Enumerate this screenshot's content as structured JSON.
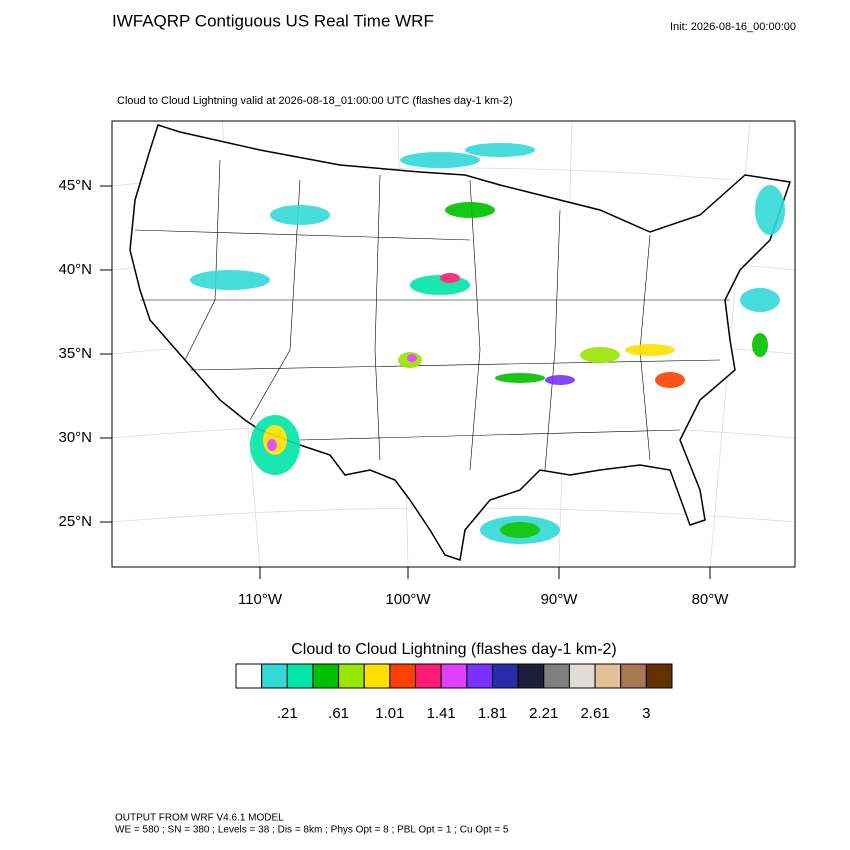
{
  "header": {
    "title": "IWFAQRP Contiguous US Real Time WRF",
    "init": "Init: 2026-08-16_00:00:00",
    "subtitle": "Cloud to Cloud Lightning valid at 2026-08-18_01:00:00 UTC   (flashes day-1 km-2)"
  },
  "map": {
    "lat_labels": [
      "45°N",
      "40°N",
      "35°N",
      "30°N",
      "25°N"
    ],
    "lon_labels": [
      "110°W",
      "100°W",
      "90°W",
      "80°W"
    ]
  },
  "colorbar": {
    "title": "Cloud to Cloud Lightning  (flashes day-1 km-2)",
    "colors": [
      "#ffffff",
      "#33d9d9",
      "#00e6a8",
      "#00c000",
      "#99e600",
      "#ffe000",
      "#ff4000",
      "#ff1a75",
      "#e040ff",
      "#7a30ff",
      "#2a2aaa",
      "#1e1e3c",
      "#808080",
      "#e0dcd6",
      "#e6c096",
      "#a87850",
      "#643200"
    ],
    "labels": [
      ".21",
      ".61",
      "1.01",
      "1.41",
      "1.81",
      "2.21",
      "2.61",
      "3"
    ]
  },
  "footer": {
    "line1": "OUTPUT FROM WRF V4.6.1 MODEL",
    "line2": "WE = 580 ; SN = 380 ; Levels = 38 ; Dis = 8km ; Phys Opt = 8 ; PBL Opt = 1 ; Cu Opt = 5"
  }
}
